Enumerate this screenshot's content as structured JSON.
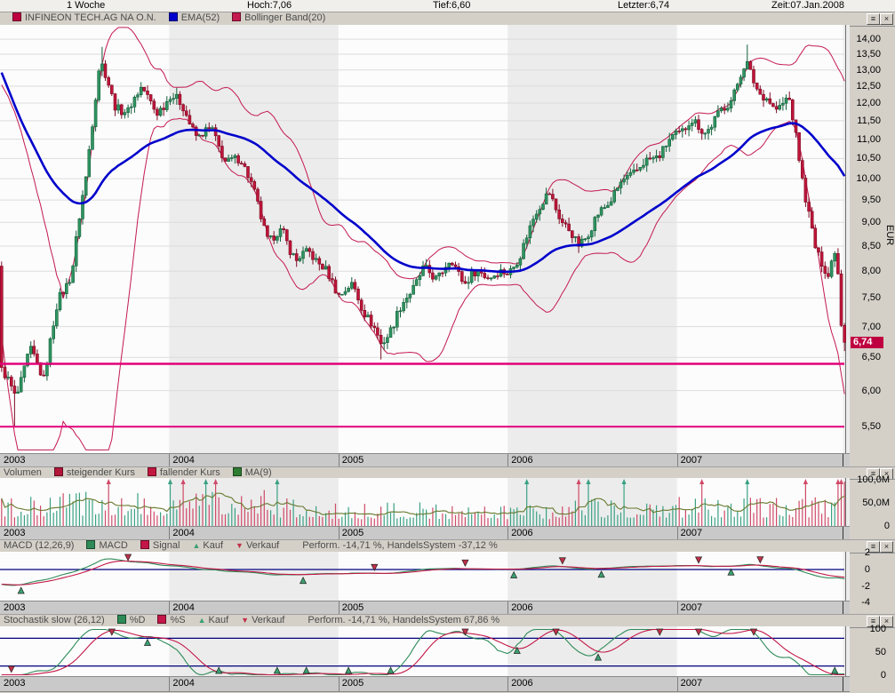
{
  "window": {
    "header": {
      "period": "1 Woche",
      "hoch": "Hoch:7,06",
      "tief": "Tief:6,60",
      "letzter": "Letzter:6,74",
      "zeit": "Zeit:07.Jan.2008"
    },
    "icons": {
      "menu": "≡",
      "close": "×"
    }
  },
  "panels": [
    {
      "id": "main",
      "title": null,
      "legend": [
        {
          "type": "square",
          "color": "#bf0040",
          "label": "INFINEON TECH.AG NA O.N."
        },
        {
          "type": "square",
          "color": "#0000cc",
          "label": "EMA(52)"
        },
        {
          "type": "square",
          "color": "#c41950",
          "label": "Bollinger Band(20)"
        }
      ],
      "note": null
    },
    {
      "id": "volume",
      "title": "Volumen",
      "legend": [
        {
          "type": "square",
          "color": "#b2173a",
          "label": "steigender Kurs"
        },
        {
          "type": "square",
          "color": "#c2173f",
          "label": "fallender Kurs"
        },
        {
          "type": "square",
          "color": "#2e7d32",
          "label": "MA(9)"
        }
      ],
      "note": null
    },
    {
      "id": "macd",
      "title": "MACD (12,26,9)",
      "legend": [
        {
          "type": "square",
          "color": "#2e8b57",
          "label": "MACD"
        },
        {
          "type": "square",
          "color": "#c41747",
          "label": "Signal"
        },
        {
          "type": "tri-up",
          "color": "#3aa070",
          "label": "Kauf"
        },
        {
          "type": "tri-down",
          "color": "#c03048",
          "label": "Verkauf"
        }
      ],
      "note": "Perform. -14,71 %, HandelsSystem -37,12 %"
    },
    {
      "id": "stoch",
      "title": "Stochastik slow (26,12)",
      "legend": [
        {
          "type": "square",
          "color": "#2e8b57",
          "label": "%D"
        },
        {
          "type": "square",
          "color": "#c41747",
          "label": "%S"
        },
        {
          "type": "tri-up",
          "color": "#3aa070",
          "label": "Kauf"
        },
        {
          "type": "tri-down",
          "color": "#c03048",
          "label": "Verkauf"
        }
      ],
      "note": "Perform. -14,71 %, HandelsSystem 67,86 %"
    }
  ],
  "chart_data": {
    "type": "candlestick",
    "instrument": "INFINEON TECH.AG NA O.N.",
    "period": "1 Woche",
    "last": 6.74,
    "week_high": 7.06,
    "week_low": 6.6,
    "time": "07.Jan.2008",
    "x_years": [
      "2003",
      "2004",
      "2005",
      "2006",
      "2007"
    ],
    "price_axis": {
      "unit": "EUR",
      "scale": "log",
      "tick_values": [
        14.0,
        13.5,
        13.0,
        12.5,
        12.0,
        11.5,
        11.0,
        10.5,
        10.0,
        9.5,
        9.0,
        8.5,
        8.0,
        7.5,
        7.0,
        6.5,
        6.0,
        5.5
      ],
      "tick_labels": [
        "14,00",
        "13,50",
        "13,00",
        "12,50",
        "12,00",
        "11,50",
        "11,00",
        "10,50",
        "10,00",
        "9,50",
        "9,00",
        "8,50",
        "8,00",
        "7,50",
        "7,00",
        "6,50",
        "6,00",
        "5,50"
      ],
      "marker": {
        "value": 6.74,
        "label": "6,74",
        "color": "#bf0040"
      }
    },
    "support_lines": [
      {
        "value": 6.4,
        "color": "#e2007a",
        "width": 2.6
      },
      {
        "value": 5.5,
        "color": "#e2007a",
        "width": 2.0
      }
    ],
    "start_month": "Jan 2003",
    "end_month": "Jan 2008",
    "monthly_closes": [
      6.3,
      5.9,
      6.6,
      6.2,
      7.4,
      8.0,
      10.0,
      13.3,
      12.0,
      11.7,
      12.6,
      11.6,
      12.3,
      11.8,
      11.0,
      11.3,
      10.3,
      10.6,
      9.6,
      8.6,
      8.8,
      8.2,
      8.4,
      8.0,
      7.6,
      7.7,
      7.2,
      6.7,
      7.1,
      7.6,
      8.0,
      7.9,
      8.2,
      7.8,
      8.0,
      7.9,
      8.0,
      8.3,
      9.3,
      9.6,
      9.0,
      8.5,
      8.9,
      9.4,
      9.8,
      10.2,
      10.4,
      10.7,
      11.1,
      11.5,
      11.2,
      11.6,
      12.2,
      13.2,
      12.3,
      11.8,
      12.2,
      10.0,
      8.3,
      7.9,
      6.74
    ],
    "last_candle": {
      "open": 7.02,
      "high": 7.06,
      "low": 6.6,
      "close": 6.74
    },
    "indicators": {
      "ema": {
        "period": 52,
        "color": "#0000cc"
      },
      "bollinger": {
        "period": 20,
        "mult": 2,
        "color": "#c41950"
      },
      "volume_ma": {
        "period": 9,
        "color": "#667a2d"
      },
      "macd": {
        "fast": 12,
        "slow": 26,
        "signal": 9,
        "macd_color": "#2e8b57",
        "signal_color": "#c41747",
        "zero_line_color": "#000080"
      },
      "stochastic": {
        "period": 26,
        "smooth": 12,
        "d_color": "#2e8b57",
        "s_color": "#c41747",
        "ref_lines": [
          80,
          20
        ],
        "ref_color": "#000080"
      }
    },
    "volume_axis": {
      "tick_values": [
        100,
        50,
        0
      ],
      "tick_labels": [
        "100,0M",
        "50,0M",
        "0"
      ]
    },
    "macd_axis": {
      "tick_values": [
        2,
        0,
        -2,
        -4
      ],
      "tick_labels": [
        "2",
        "0",
        "-2",
        "-4"
      ]
    },
    "stoch_axis": {
      "tick_values": [
        100,
        50,
        0
      ],
      "tick_labels": [
        "100",
        "50",
        "0"
      ]
    },
    "colors": {
      "candle_up_fill": "#2f9460",
      "candle_up_border": "#15603c",
      "candle_down_fill": "#bf1539",
      "candle_down_border": "#7d0d26",
      "volume_up": "#3aa183",
      "volume_down": "#cf4a68",
      "year_shade": "#ececec",
      "grid": "#dcdcdc"
    }
  }
}
